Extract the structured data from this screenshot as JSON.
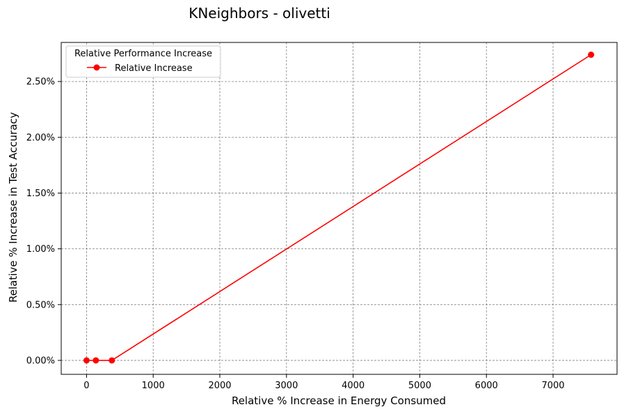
{
  "chart_data": {
    "type": "line",
    "title": "KNeighbors - olivetti",
    "xlabel": "Relative % Increase in Energy Consumed",
    "ylabel": "Relative % Increase in Test Accuracy",
    "xlim": [
      -380,
      7960
    ],
    "ylim": [
      -0.125,
      2.85
    ],
    "xticks": [
      0,
      1000,
      2000,
      3000,
      4000,
      5000,
      6000,
      7000
    ],
    "xtick_labels": [
      "0",
      "1000",
      "2000",
      "3000",
      "4000",
      "5000",
      "6000",
      "7000"
    ],
    "yticks": [
      0,
      0.5,
      1.0,
      1.5,
      2.0,
      2.5
    ],
    "ytick_labels": [
      "0.00%",
      "0.50%",
      "1.00%",
      "1.50%",
      "2.00%",
      "2.50%"
    ],
    "grid": true,
    "legend": {
      "title": "Relative Performance Increase",
      "placement": "top-left"
    },
    "series": [
      {
        "name": "Relative Increase",
        "color": "#ff0000",
        "marker": "circle",
        "x": [
          0,
          140,
          380,
          7570
        ],
        "y": [
          0.0,
          0.0,
          0.0,
          2.74
        ]
      }
    ]
  }
}
